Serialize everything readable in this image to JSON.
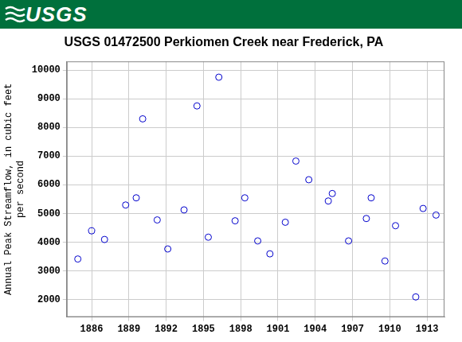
{
  "banner": "USGS",
  "chart_data": {
    "type": "scatter",
    "title": "USGS 01472500 Perkiomen Creek near Frederick, PA",
    "ylabel": "Annual Peak Streamflow, in cubic feet per second",
    "x": [
      1884.89,
      1886.0,
      1887.04,
      1888.74,
      1889.59,
      1890.11,
      1891.28,
      1892.13,
      1893.44,
      1894.48,
      1895.39,
      1896.24,
      1897.55,
      1898.33,
      1899.37,
      1900.35,
      1901.59,
      1902.44,
      1903.48,
      1905.05,
      1905.37,
      1906.68,
      1908.11,
      1908.5,
      1909.61,
      1910.46,
      1912.09,
      1912.68,
      1913.72
    ],
    "values": [
      3420,
      4400,
      4100,
      5300,
      5550,
      8300,
      4780,
      3770,
      5130,
      8750,
      4180,
      9750,
      4750,
      5550,
      4050,
      3600,
      4700,
      6830,
      6180,
      5440,
      5700,
      4050,
      4830,
      5550,
      3350,
      4580,
      2100,
      5180,
      4950
    ],
    "color": "#0000cc",
    "marker": "circle",
    "xlim": [
      1884,
      1914.4
    ],
    "xticks": [
      1886,
      1889,
      1892,
      1895,
      1898,
      1901,
      1904,
      1907,
      1910,
      1913
    ],
    "ylim": [
      1400,
      10300
    ],
    "yticks": [
      2000,
      3000,
      4000,
      5000,
      6000,
      7000,
      8000,
      9000,
      10000
    ],
    "grid": true
  }
}
